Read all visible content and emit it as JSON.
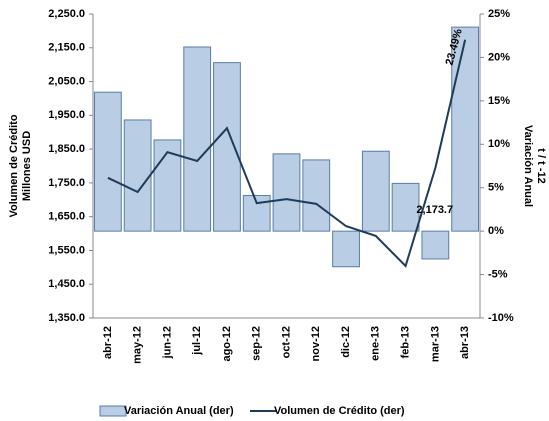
{
  "chart_data": {
    "type": "bar-line",
    "categories": [
      "abr-12",
      "may-12",
      "jun-12",
      "jul-12",
      "ago-12",
      "sep-12",
      "oct-12",
      "nov-12",
      "dic-12",
      "ene-13",
      "feb-13",
      "mar-13",
      "abr-13"
    ],
    "ylabel": [
      "Volumen de Crédito",
      "Millones USD"
    ],
    "y2label": [
      "Variación Anual",
      "t / t -12"
    ],
    "ylim": [
      1350,
      2250
    ],
    "yticks": [
      {
        "value": 1350,
        "label": "1,350.0"
      },
      {
        "value": 1450,
        "label": "1,450.0"
      },
      {
        "value": 1550,
        "label": "1,550.0"
      },
      {
        "value": 1650,
        "label": "1,650.0"
      },
      {
        "value": 1750,
        "label": "1,750.0"
      },
      {
        "value": 1850,
        "label": "1,850.0"
      },
      {
        "value": 1950,
        "label": "1,950.0"
      },
      {
        "value": 2050,
        "label": "2,050.0"
      },
      {
        "value": 2150,
        "label": "2,150.0"
      },
      {
        "value": 2250,
        "label": "2,250.0"
      }
    ],
    "y2lim": [
      -10,
      25
    ],
    "y2ticks": [
      {
        "value": -10,
        "label": "-10%"
      },
      {
        "value": -5,
        "label": "-5%"
      },
      {
        "value": 0,
        "label": "0%"
      },
      {
        "value": 5,
        "label": "5%"
      },
      {
        "value": 10,
        "label": "10%"
      },
      {
        "value": 15,
        "label": "15%"
      },
      {
        "value": 20,
        "label": "20%"
      },
      {
        "value": 25,
        "label": "25%"
      }
    ],
    "series": [
      {
        "name": "Variación Anual (der)",
        "kind": "bar",
        "axis": "y2",
        "color": "#b9cde5",
        "values": [
          16.0,
          12.8,
          10.5,
          21.2,
          19.4,
          4.1,
          8.9,
          8.2,
          -4.1,
          9.2,
          5.5,
          -3.2,
          23.49
        ],
        "value_labels": [
          null,
          null,
          null,
          null,
          null,
          null,
          null,
          null,
          null,
          null,
          null,
          null,
          "23.49%"
        ]
      },
      {
        "name": "Volumen de Crédito (der)",
        "kind": "line",
        "axis": "y",
        "color": "#1f3b5a",
        "values": [
          1765,
          1723,
          1841,
          1815,
          1912,
          1690,
          1702,
          1688,
          1622,
          1593,
          1504,
          1794,
          2173.7
        ],
        "value_labels": [
          null,
          null,
          null,
          null,
          null,
          null,
          null,
          null,
          null,
          null,
          null,
          null,
          "2,173.7"
        ]
      }
    ]
  }
}
